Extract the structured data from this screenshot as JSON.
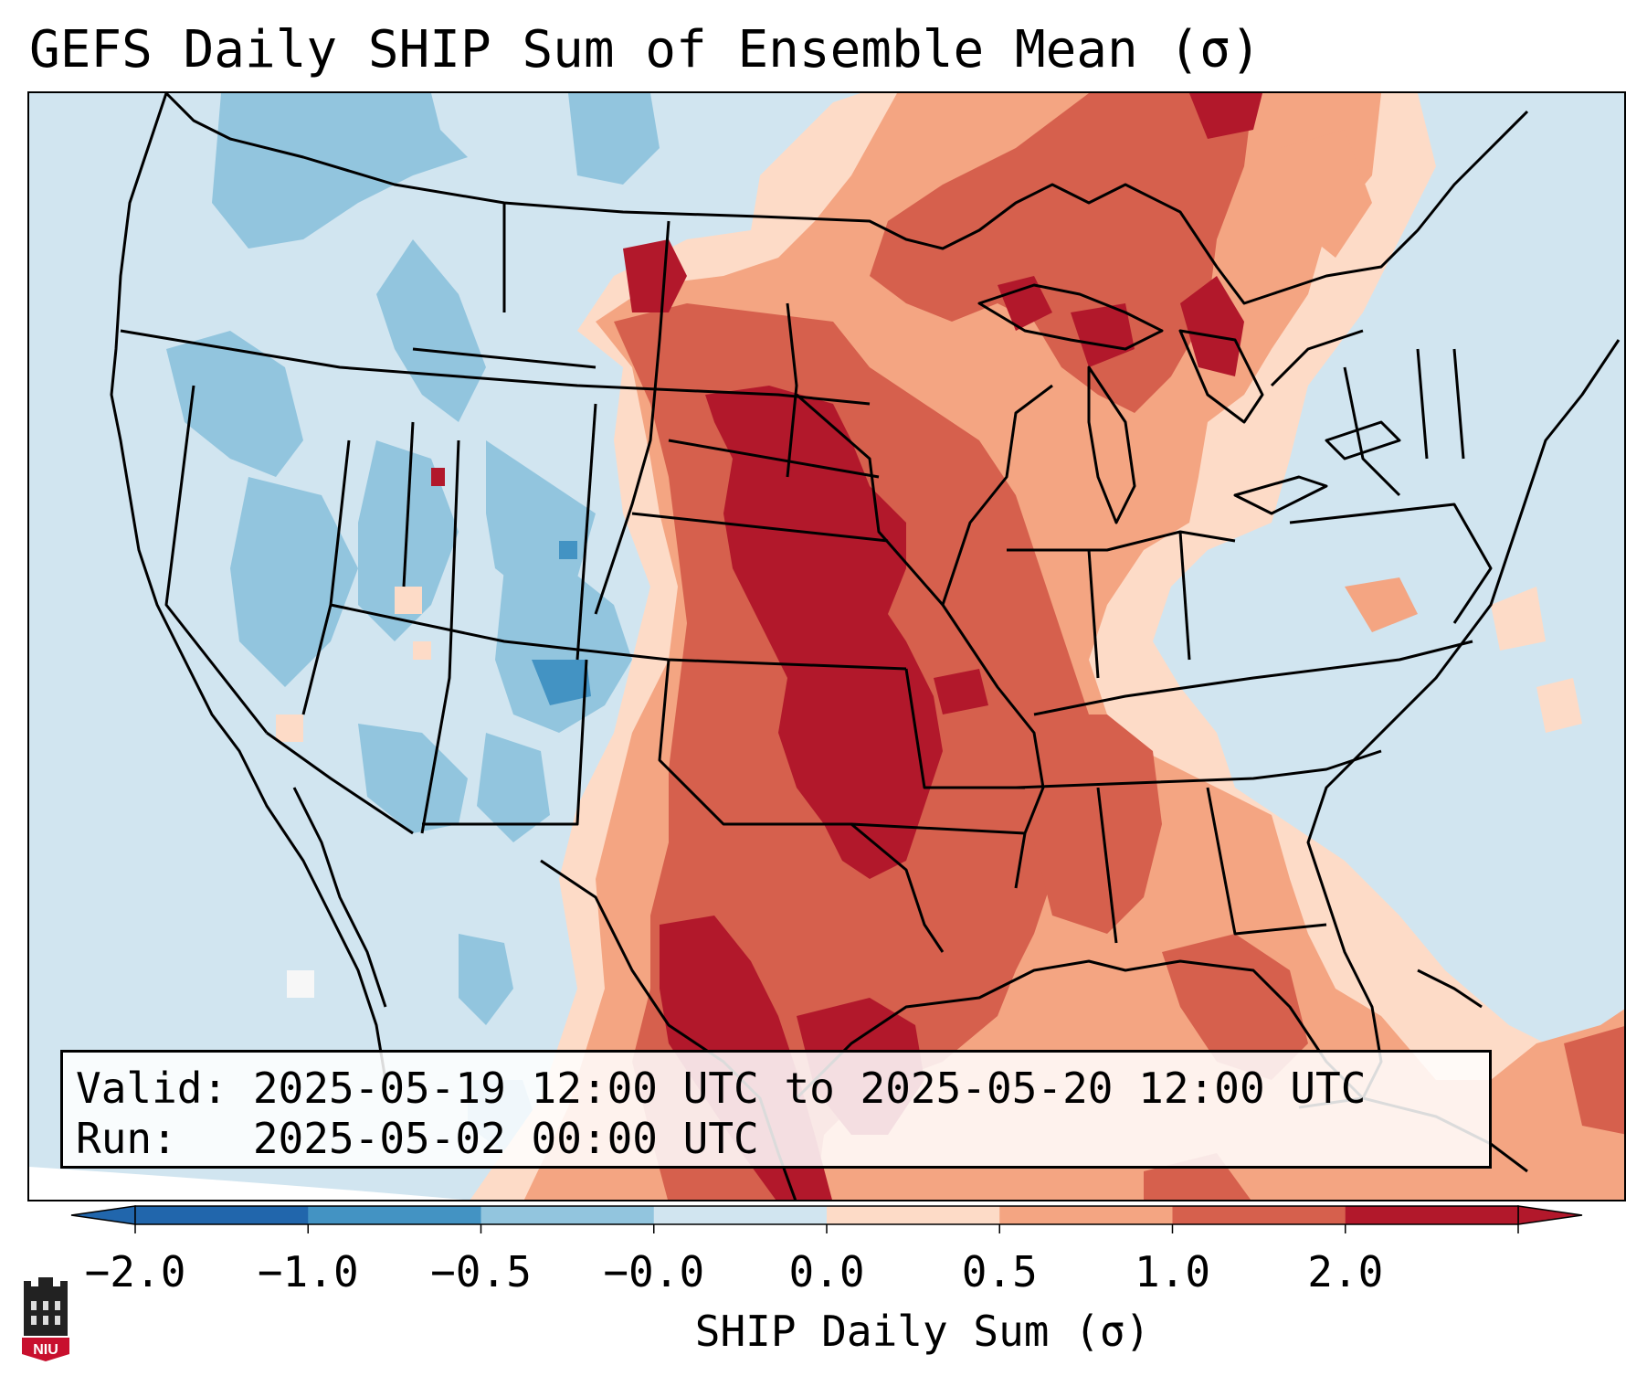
{
  "title": "GEFS Daily SHIP Sum of Ensemble Mean (σ)",
  "info": {
    "valid_line": "Valid: 2025-05-19 12:00 UTC to 2025-05-20 12:00 UTC",
    "run_line": "Run:   2025-05-02 00:00 UTC"
  },
  "colorbar": {
    "label": "SHIP Daily Sum (σ)",
    "ticks": [
      "−2.0",
      "−1.0",
      "−0.5",
      "−0.0",
      "0.0",
      "0.5",
      "1.0",
      "2.0"
    ],
    "colors": [
      "#2166ac",
      "#4393c3",
      "#92c5de",
      "#d1e5f0",
      "#fddbc7",
      "#f4a582",
      "#d6604d",
      "#b2182b"
    ],
    "extend": "both"
  },
  "logo": {
    "text": "NIU"
  },
  "map": {
    "region": "Contiguous United States",
    "background_category": "−0.0 to 0.0",
    "colors": {
      "very_low": "#2166ac",
      "low": "#4393c3",
      "mid_low": "#92c5de",
      "near_zero_neg": "#d1e5f0",
      "near_zero_pos": "#fddbc7",
      "mid_high": "#f4a582",
      "high": "#d6604d",
      "very_high": "#b2182b"
    }
  }
}
